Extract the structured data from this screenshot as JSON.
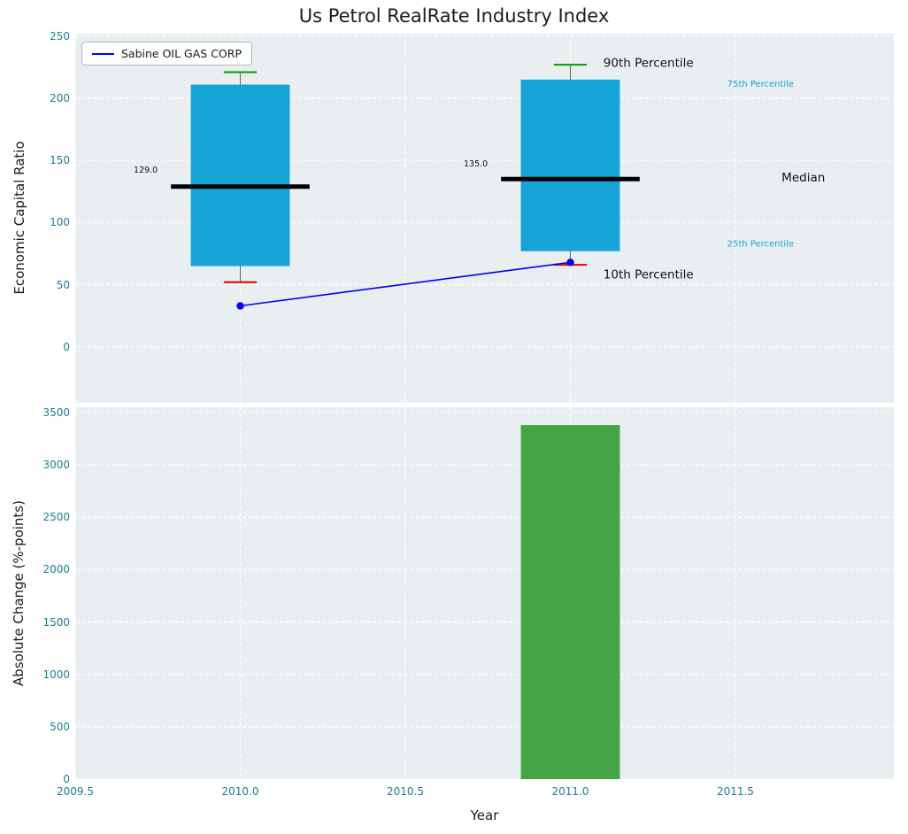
{
  "title": "Us Petrol RealRate Industry Index",
  "legend": {
    "label": "Sabine OIL GAS CORP"
  },
  "colors": {
    "box_fill": "#16a3d6",
    "median_line": "#000000",
    "p90_cap": "#009c00",
    "p10_cap": "#e10000",
    "whisker": "#666666",
    "company_line": "#0000ee",
    "bar_fill": "#43a543",
    "tick_label": "#1b7e8f",
    "cyan_annotation": "#16a3d6",
    "dark_annotation": "#111111",
    "plot_background": "#e9eef0",
    "grid": "#ffffff"
  },
  "chart_data": [
    {
      "type": "boxplot+line",
      "panel": "top",
      "title": "Us Petrol RealRate Industry Index",
      "ylabel": "Economic Capital Ratio",
      "xlim": [
        2009.5,
        2011.98
      ],
      "ylim": [
        -45,
        252
      ],
      "yticks": [
        0,
        50,
        100,
        150,
        200,
        250
      ],
      "xticks": [
        2009.5,
        2010,
        2010.5,
        2011,
        2011.5
      ],
      "boxes": [
        {
          "x": 2010,
          "p10": 52,
          "p25": 65,
          "median": 129,
          "p75": 211,
          "p90": 221
        },
        {
          "x": 2011,
          "p10": 66,
          "p25": 77,
          "median": 135,
          "p75": 215,
          "p90": 227
        }
      ],
      "series": [
        {
          "name": "Sabine OIL GAS CORP",
          "x": [
            2010,
            2011
          ],
          "y": [
            33,
            68
          ]
        }
      ],
      "annotations": [
        {
          "text": "90th Percentile",
          "x": 2011.1,
          "y": 228,
          "size": 13.5,
          "color": "#111111",
          "anchor": "start"
        },
        {
          "text": "10th Percentile",
          "x": 2011.1,
          "y": 58,
          "size": 13.5,
          "color": "#111111",
          "anchor": "start"
        },
        {
          "text": "75th Percentile",
          "x": 2011.475,
          "y": 211.5,
          "size": 10,
          "color": "#16a3d6",
          "anchor": "start"
        },
        {
          "text": "25th Percentile",
          "x": 2011.475,
          "y": 83,
          "size": 10,
          "color": "#16a3d6",
          "anchor": "start"
        },
        {
          "text": "Median",
          "x": 2011.64,
          "y": 136,
          "size": 13.5,
          "color": "#111111",
          "anchor": "start"
        },
        {
          "text": "129.0",
          "x": 2009.75,
          "y": 142,
          "size": 9.5,
          "color": "#111111",
          "anchor": "end"
        },
        {
          "text": "135.0",
          "x": 2010.75,
          "y": 147,
          "size": 9.5,
          "color": "#111111",
          "anchor": "end"
        }
      ]
    },
    {
      "type": "bar",
      "panel": "bottom",
      "ylabel": "Absolute Change (%-points)",
      "xlabel": "Year",
      "xlim": [
        2009.5,
        2011.98
      ],
      "ylim": [
        0,
        3550
      ],
      "yticks": [
        0,
        500,
        1000,
        1500,
        2000,
        2500,
        3000,
        3500
      ],
      "xticks": [
        2009.5,
        2010,
        2010.5,
        2011,
        2011.5
      ],
      "xtick_labels": [
        "2009.5",
        "2010.0",
        "2010.5",
        "2011.0",
        "2011.5"
      ],
      "bars": [
        {
          "x": 2011,
          "value": 3380
        }
      ]
    }
  ]
}
